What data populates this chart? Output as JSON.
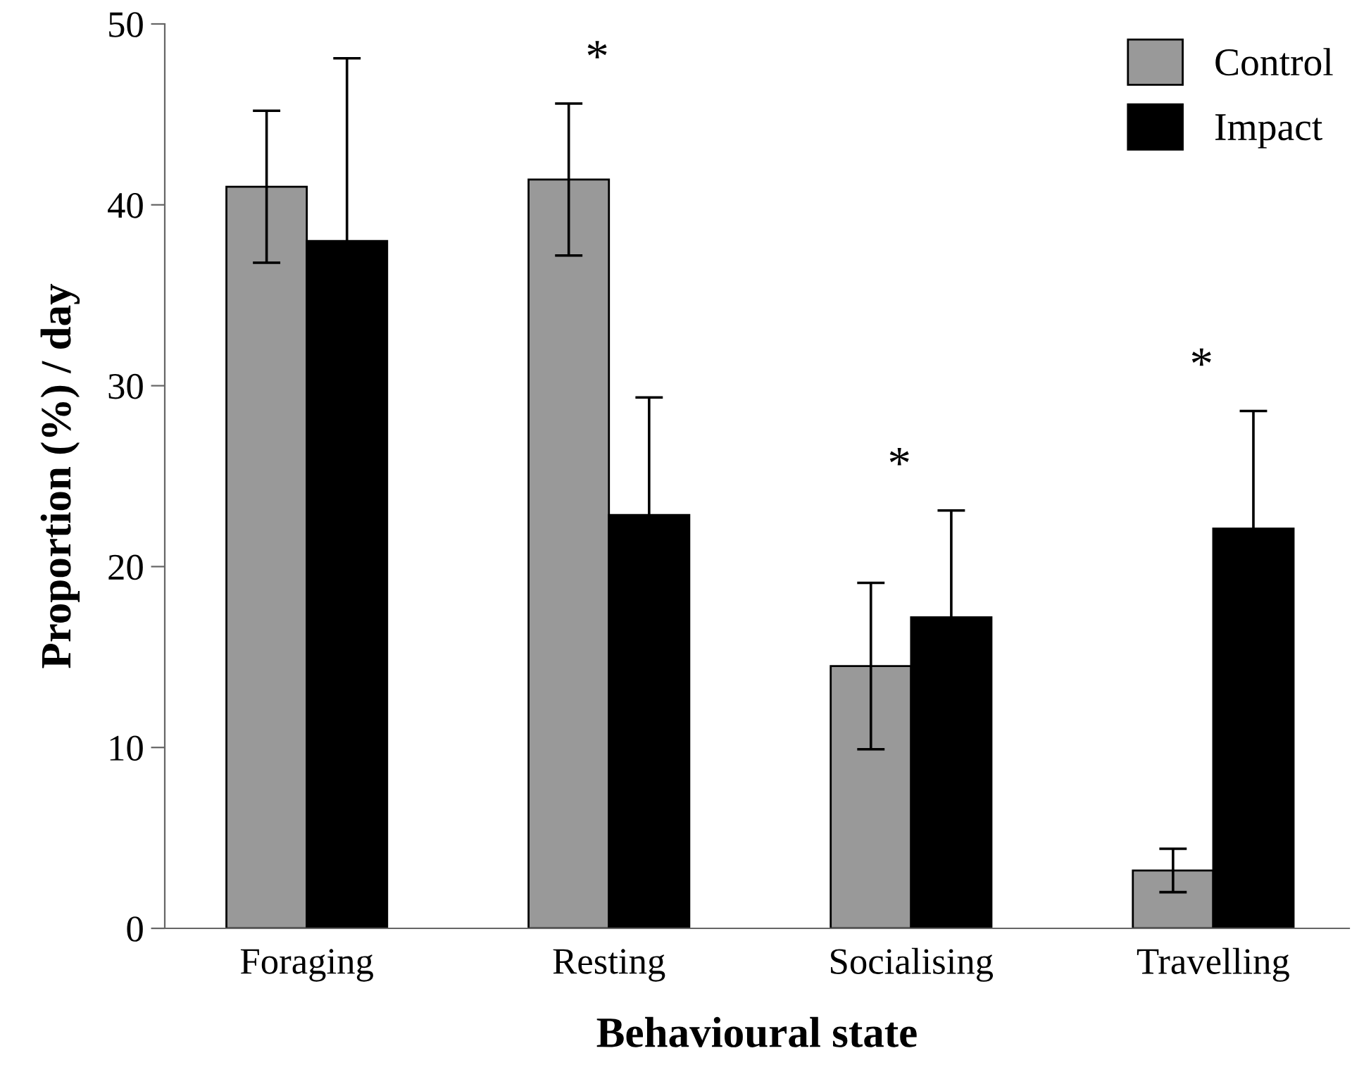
{
  "chart_data": {
    "type": "bar",
    "xlabel": "Behavioural state",
    "ylabel": "Proportion (%) / day",
    "categories": [
      "Foraging",
      "Resting",
      "Socialising",
      "Travelling"
    ],
    "series": [
      {
        "name": "Control",
        "color": "#999999",
        "values": [
          41.0,
          41.4,
          14.5,
          3.2
        ],
        "errors": [
          4.2,
          4.2,
          4.6,
          1.2
        ]
      },
      {
        "name": "Impact",
        "color": "#000000",
        "values": [
          38.0,
          22.85,
          17.2,
          22.1
        ],
        "errors": [
          10.1,
          6.5,
          5.9,
          6.5
        ]
      }
    ],
    "ylim": [
      0,
      50
    ],
    "yticks": [
      0,
      10,
      20,
      30,
      40,
      50
    ],
    "grid": false,
    "legend": "top right",
    "annotations": [
      "*",
      "*",
      "*"
    ]
  }
}
